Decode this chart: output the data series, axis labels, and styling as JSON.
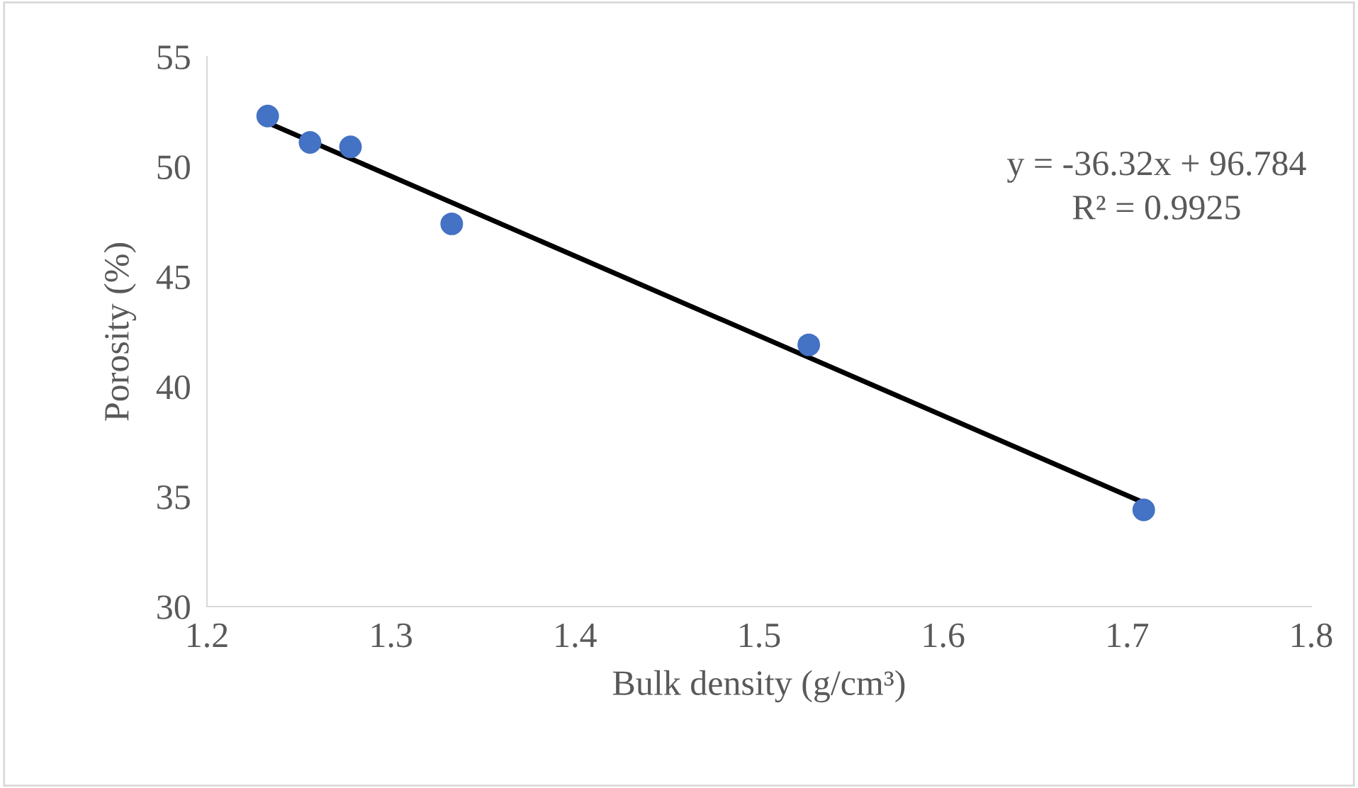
{
  "chart_data": {
    "type": "scatter",
    "xlabel": "Bulk density (g/cm³)",
    "ylabel": "Porosity (%)",
    "x": [
      1.233,
      1.256,
      1.278,
      1.333,
      1.527,
      1.709
    ],
    "series": [
      {
        "color": "#4472c4",
        "marker": "circle",
        "values": [
          52.3,
          51.1,
          50.9,
          47.4,
          41.9,
          34.4
        ]
      },
      {
        "type": "line",
        "color": "#000000",
        "marker": "none",
        "line_style": "solid",
        "x": [
          1.233,
          1.711
        ],
        "values": [
          52.0,
          34.65
        ]
      }
    ],
    "xlim": [
      1.2,
      1.8
    ],
    "xticks": [
      1.2,
      1.3,
      1.4,
      1.5,
      1.6,
      1.7,
      1.8
    ],
    "ylim": [
      30,
      55
    ],
    "yticks": [
      30,
      35,
      40,
      45,
      50,
      55
    ],
    "annotations": [
      "y = -36.32x + 96.784",
      "R² = 0.9925"
    ],
    "grid": false,
    "legend": false
  }
}
